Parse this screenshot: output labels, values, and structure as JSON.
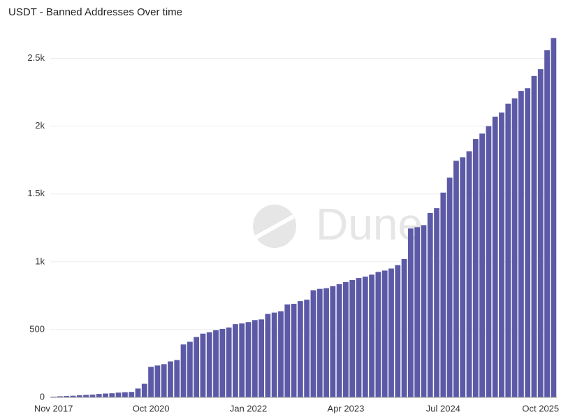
{
  "chart_data": {
    "type": "bar",
    "title": "USDT - Banned Addresses Over time",
    "watermark": "Dune",
    "categories": [
      "Nov 2017",
      null,
      null,
      null,
      null,
      null,
      null,
      null,
      null,
      null,
      null,
      null,
      null,
      null,
      null,
      "Oct 2020",
      null,
      null,
      null,
      null,
      null,
      null,
      null,
      null,
      null,
      null,
      null,
      null,
      null,
      null,
      "Jan 2022",
      null,
      null,
      null,
      null,
      null,
      null,
      null,
      null,
      null,
      null,
      null,
      null,
      null,
      null,
      "Apr 2023",
      null,
      null,
      null,
      null,
      null,
      null,
      null,
      null,
      null,
      null,
      null,
      null,
      null,
      null,
      "Jul 2024",
      null,
      null,
      null,
      null,
      null,
      null,
      null,
      null,
      null,
      null,
      null,
      null,
      null,
      null,
      "Oct 2025",
      null,
      null
    ],
    "values": [
      5,
      8,
      10,
      12,
      15,
      18,
      20,
      25,
      28,
      30,
      35,
      38,
      40,
      65,
      100,
      225,
      235,
      245,
      265,
      275,
      390,
      410,
      445,
      470,
      480,
      495,
      505,
      515,
      540,
      545,
      555,
      570,
      575,
      615,
      625,
      635,
      685,
      690,
      710,
      720,
      790,
      800,
      805,
      820,
      835,
      850,
      865,
      880,
      890,
      905,
      925,
      935,
      950,
      975,
      1020,
      1245,
      1255,
      1270,
      1360,
      1395,
      1510,
      1620,
      1745,
      1770,
      1815,
      1905,
      1945,
      2000,
      2070,
      2100,
      2165,
      2205,
      2260,
      2280,
      2370,
      2420,
      2560,
      2650
    ],
    "color": "#5c5aa6",
    "ylim": [
      0,
      2750
    ],
    "yticks": [
      0,
      500,
      {
        "value": 1000,
        "label": "1k"
      },
      {
        "value": 1500,
        "label": "1.5k"
      },
      {
        "value": 2000,
        "label": "2k"
      },
      {
        "value": 2500,
        "label": "2.5k"
      }
    ],
    "grid": true
  }
}
